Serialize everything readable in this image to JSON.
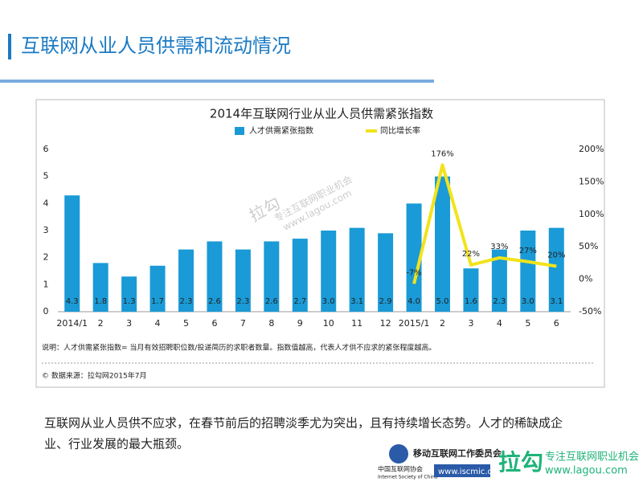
{
  "header": {
    "title": "互联网从业人员供需和流动情况"
  },
  "chart_data": {
    "type": "bar",
    "title": "2014年互联网行业从业人员供需紧张指数",
    "categories": [
      "2014/1",
      "2",
      "3",
      "4",
      "5",
      "6",
      "7",
      "8",
      "9",
      "10",
      "11",
      "12",
      "2015/1",
      "2",
      "3",
      "4",
      "5",
      "6"
    ],
    "series": [
      {
        "name": "人才供需紧张指数",
        "color": "#1a9ad6",
        "type": "bar",
        "values": [
          4.3,
          1.8,
          1.3,
          1.7,
          2.3,
          2.6,
          2.3,
          2.6,
          2.7,
          3.0,
          3.1,
          2.9,
          4.0,
          5.0,
          1.6,
          2.3,
          3.0,
          3.1
        ],
        "value_labels": [
          "4.3",
          "1.8",
          "1.3",
          "1.7",
          "2.3",
          "2.6",
          "2.3",
          "2.6",
          "2.7",
          "3.0",
          "3.1",
          "2.9",
          "4.0",
          "5.0",
          "1.6",
          "2.3",
          "3.0",
          "3.1"
        ]
      },
      {
        "name": "同比增长率",
        "color": "#f2e31c",
        "type": "line",
        "axis": "y2",
        "values": [
          null,
          null,
          null,
          null,
          null,
          null,
          null,
          null,
          null,
          null,
          null,
          null,
          -7,
          176,
          22,
          33,
          27,
          20
        ],
        "value_labels": [
          null,
          null,
          null,
          null,
          null,
          null,
          null,
          null,
          null,
          null,
          null,
          null,
          "-7%",
          "176%",
          "22%",
          "33%",
          "27%",
          "20%"
        ]
      }
    ],
    "ylim": [
      0,
      6
    ],
    "yticks": [
      0,
      1,
      2,
      3,
      4,
      5,
      6
    ],
    "y2lim": [
      -50,
      200
    ],
    "y2ticks": [
      {
        "value": -50,
        "label": "-50%"
      },
      {
        "value": 0,
        "label": "0%"
      },
      {
        "value": 50,
        "label": "50%"
      },
      {
        "value": 100,
        "label": "100%"
      },
      {
        "value": 150,
        "label": "150%"
      },
      {
        "value": 200,
        "label": "200%"
      }
    ],
    "legend": "top",
    "note": "说明：人才供需紧张指数= 当月有效招聘职位数/投递简历的求职者数量。指数值越高，代表人才供不应求的紧张程度越高。",
    "source": "© 数据来源：拉勾网2015年7月",
    "watermark": [
      "拉勾",
      "专注互联网职业机会",
      "www.lagou.com"
    ]
  },
  "body": {
    "lines": [
      "互联网从业人员供不应求，在春节前后的招聘淡季尤为突出，且有持续增长态势。人才的稀缺成企",
      "业、行业发展的最大瓶颈。"
    ]
  },
  "footer": {
    "isc": [
      "移动互联网工作委员会",
      "中国互联网协会",
      "Internet Society of China",
      "www.iscmic.org.cn"
    ],
    "lagou": [
      "拉勾",
      "专注互联网职业机会",
      "www.lagou.com"
    ]
  }
}
